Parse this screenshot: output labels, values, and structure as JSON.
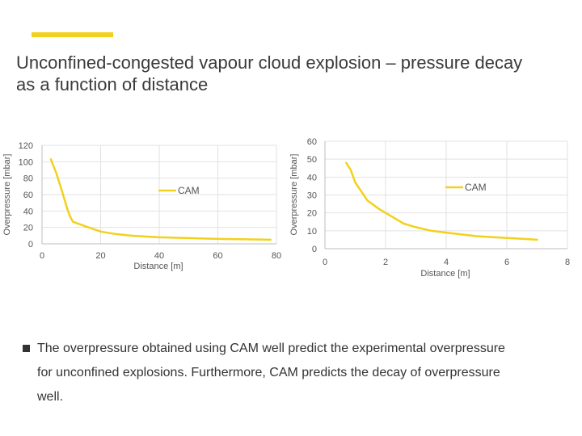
{
  "colors": {
    "accent": "#f2d11c",
    "series": "#f2d11c",
    "grid": "#e2e2e2"
  },
  "slide": {
    "title_line1": "Unconfined-congested vapour cloud explosion – pressure decay",
    "title_line2": "as a function of distance",
    "bullet": "The overpressure obtained using CAM well predict the experimental overpressure for unconfined explosions. Furthermore, CAM predicts the decay of overpressure well."
  },
  "chart_data": [
    {
      "type": "line",
      "title": "",
      "xlabel": "Distance [m]",
      "ylabel": "Overpressure [mbar]",
      "xlim": [
        0,
        80
      ],
      "ylim": [
        0,
        120
      ],
      "xticks": [
        0,
        20,
        40,
        60,
        80
      ],
      "yticks": [
        0,
        20,
        40,
        60,
        80,
        100,
        120
      ],
      "grid": true,
      "legend": "center",
      "series": [
        {
          "name": "CAM",
          "x": [
            3,
            5,
            7,
            8.5,
            9.5,
            10.5,
            15,
            20,
            25,
            30,
            35,
            40,
            50,
            60,
            70,
            78
          ],
          "y": [
            103,
            85,
            62,
            44,
            34,
            27,
            21,
            15,
            12,
            10,
            9,
            8,
            7,
            6,
            5.5,
            5
          ]
        }
      ]
    },
    {
      "type": "line",
      "title": "",
      "xlabel": "Distance [m]",
      "ylabel": "Overpressure [mbar]",
      "xlim": [
        0,
        8
      ],
      "ylim": [
        0,
        60
      ],
      "xticks": [
        0,
        2,
        4,
        6,
        8
      ],
      "yticks": [
        0,
        10,
        20,
        30,
        40,
        50,
        60
      ],
      "grid": true,
      "legend": "center-right",
      "series": [
        {
          "name": "CAM",
          "x": [
            0.7,
            0.85,
            1.0,
            1.2,
            1.4,
            1.8,
            2.2,
            2.6,
            3.0,
            3.5,
            4.0,
            5.0,
            6.0,
            7.0
          ],
          "y": [
            48,
            44,
            37,
            32,
            27,
            22,
            18,
            14,
            12,
            10,
            9,
            7,
            6,
            5
          ]
        }
      ]
    }
  ]
}
